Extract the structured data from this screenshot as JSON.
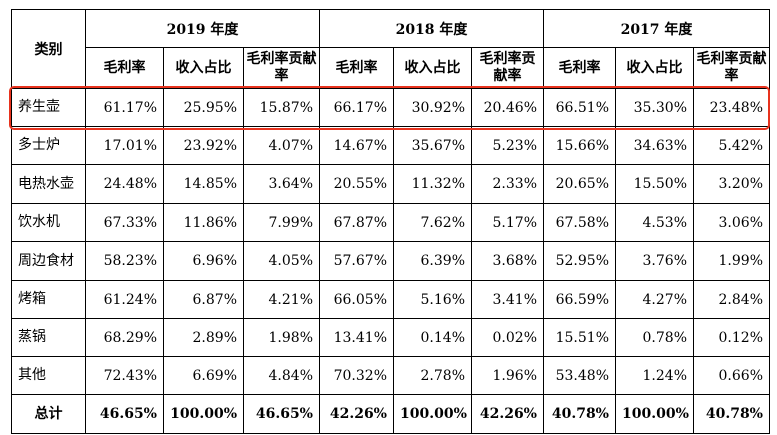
{
  "table": {
    "category_header": "类别",
    "years": [
      "2019 年度",
      "2018 年度",
      "2017 年度"
    ],
    "sub_headers": [
      "毛利率",
      "收入占比",
      "毛利率贡献率"
    ],
    "rows": [
      {
        "name": "养生壶",
        "values": [
          "61.17%",
          "25.95%",
          "15.87%",
          "66.17%",
          "30.92%",
          "20.46%",
          "66.51%",
          "35.30%",
          "23.48%"
        ]
      },
      {
        "name": "多士炉",
        "values": [
          "17.01%",
          "23.92%",
          "4.07%",
          "14.67%",
          "35.67%",
          "5.23%",
          "15.66%",
          "34.63%",
          "5.42%"
        ]
      },
      {
        "name": "电热水壶",
        "values": [
          "24.48%",
          "14.85%",
          "3.64%",
          "20.55%",
          "11.32%",
          "2.33%",
          "20.65%",
          "15.50%",
          "3.20%"
        ]
      },
      {
        "name": "饮水机",
        "values": [
          "67.33%",
          "11.86%",
          "7.99%",
          "67.87%",
          "7.62%",
          "5.17%",
          "67.58%",
          "4.53%",
          "3.06%"
        ]
      },
      {
        "name": "周边食材",
        "values": [
          "58.23%",
          "6.96%",
          "4.05%",
          "57.67%",
          "6.39%",
          "3.68%",
          "52.95%",
          "3.76%",
          "1.99%"
        ]
      },
      {
        "name": "烤箱",
        "values": [
          "61.24%",
          "6.87%",
          "4.21%",
          "66.05%",
          "5.16%",
          "3.41%",
          "66.59%",
          "4.27%",
          "2.84%"
        ]
      },
      {
        "name": "蒸锅",
        "values": [
          "68.29%",
          "2.89%",
          "1.98%",
          "13.41%",
          "0.14%",
          "0.02%",
          "15.51%",
          "0.78%",
          "0.12%"
        ]
      },
      {
        "name": "其他",
        "values": [
          "72.43%",
          "6.69%",
          "4.84%",
          "70.32%",
          "2.78%",
          "1.96%",
          "53.48%",
          "1.24%",
          "0.66%"
        ]
      }
    ],
    "total": {
      "name": "总计",
      "values": [
        "46.65%",
        "100.00%",
        "46.65%",
        "42.26%",
        "100.00%",
        "42.26%",
        "40.78%",
        "100.00%",
        "40.78%"
      ]
    }
  },
  "highlight": {
    "row": "养生壶",
    "color": "#e8331e"
  }
}
